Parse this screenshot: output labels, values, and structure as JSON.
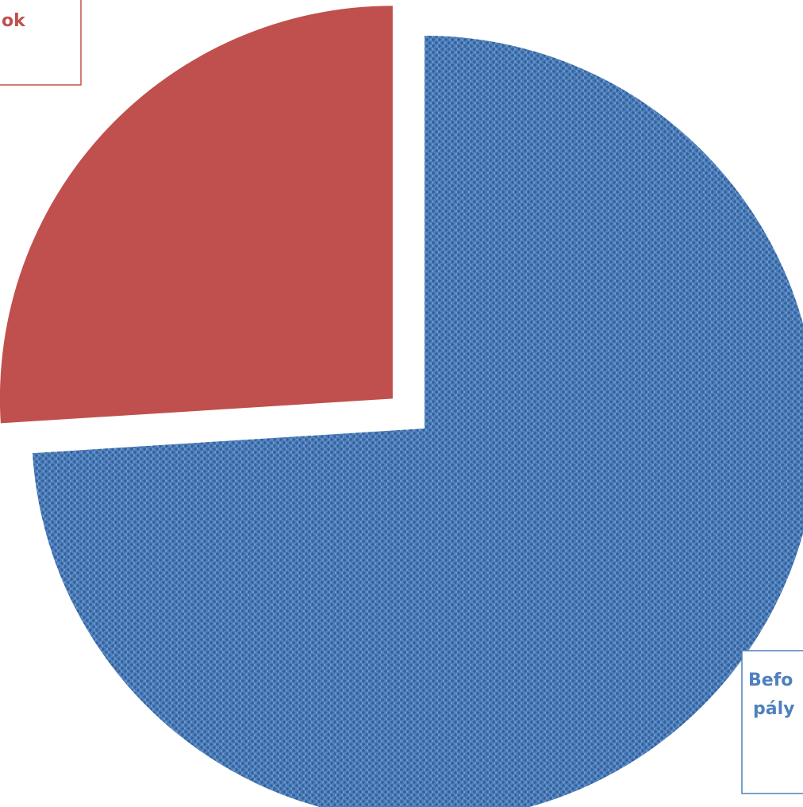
{
  "chart_data": {
    "type": "pie",
    "categories": [
      [
        "Befo",
        "pály"
      ],
      [
        "ok"
      ]
    ],
    "values": [
      74,
      26
    ],
    "colors": [
      "#4f81bd",
      "#c0504d"
    ],
    "exploded": [
      false,
      true
    ]
  }
}
